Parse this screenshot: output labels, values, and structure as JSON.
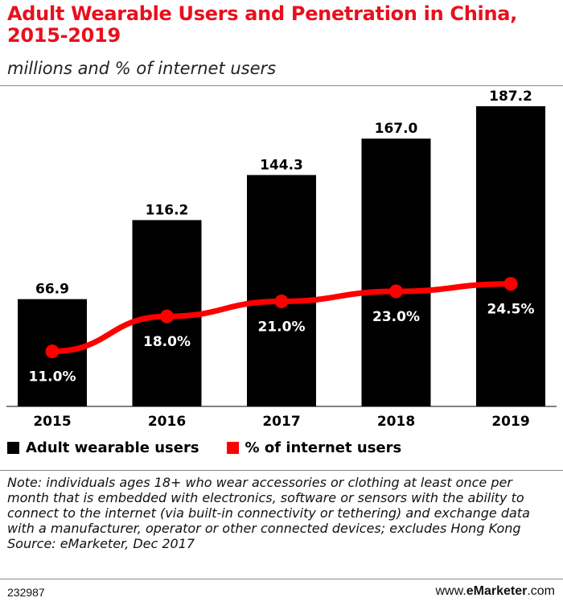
{
  "title": "Adult Wearable Users and Penetration in China, 2015-2019",
  "subtitle": "millions and % of internet users",
  "chart_data": {
    "type": "bar+line",
    "categories": [
      "2015",
      "2016",
      "2017",
      "2018",
      "2019"
    ],
    "series": [
      {
        "name": "Adult wearable users",
        "type": "bar",
        "color": "#000000",
        "values": [
          66.9,
          116.2,
          144.3,
          167.0,
          187.2
        ],
        "labels": [
          "66.9",
          "116.2",
          "144.3",
          "167.0",
          "187.2"
        ]
      },
      {
        "name": "% of internet users",
        "type": "line",
        "color": "#ff0000",
        "values": [
          11.0,
          18.0,
          21.0,
          23.0,
          24.5
        ],
        "labels": [
          "11.0%",
          "18.0%",
          "21.0%",
          "23.0%",
          "24.5%"
        ]
      }
    ],
    "bar_ylim": [
      0,
      187.2
    ],
    "line_ylim": [
      0,
      60
    ],
    "legend_position": "bottom-left"
  },
  "legend": [
    {
      "label": "Adult wearable users",
      "color": "#000000"
    },
    {
      "label": "% of internet users",
      "color": "#ff0000"
    }
  ],
  "note": "Note: individuals ages 18+ who wear accessories or clothing at least once per month that is embedded with electronics, software or sensors with the ability to connect to the internet (via built-in connectivity or tethering) and exchange data with a manufacturer, operator or other connected devices; excludes Hong Kong",
  "source": "Source: eMarketer, Dec 2017",
  "chart_id": "232987",
  "brand": {
    "prefix": "www.",
    "name": "eMarketer",
    "suffix": ".com"
  }
}
